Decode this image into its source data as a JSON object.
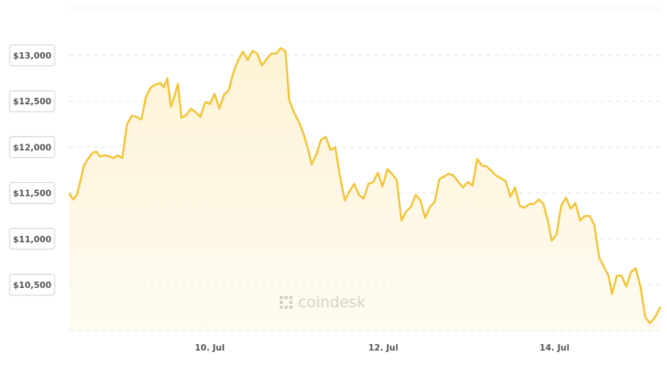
{
  "chart_data": {
    "type": "area",
    "title": "",
    "xlabel": "",
    "ylabel": "",
    "grid": true,
    "x_ticks": [
      "10. Jul",
      "12. Jul",
      "14. Jul"
    ],
    "y_ticks": [
      "$10,500",
      "$11,000",
      "$11,500",
      "$12,000",
      "$12,500",
      "$13,000"
    ],
    "y_tick_values": [
      10500,
      11000,
      11500,
      12000,
      12500,
      13000
    ],
    "ylim": [
      10000,
      13500
    ],
    "xlim": [
      0,
      100
    ],
    "series": [
      {
        "color": "#f2c438",
        "fill": "#fdf3d6",
        "points": [
          [
            0,
            11500
          ],
          [
            0.7,
            11430
          ],
          [
            1.3,
            11480
          ],
          [
            1.8,
            11600
          ],
          [
            2.5,
            11800
          ],
          [
            3.3,
            11880
          ],
          [
            4,
            11940
          ],
          [
            4.6,
            11950
          ],
          [
            5.2,
            11900
          ],
          [
            6,
            11910
          ],
          [
            6.8,
            11900
          ],
          [
            7.5,
            11880
          ],
          [
            8.2,
            11910
          ],
          [
            9,
            11880
          ],
          [
            9.8,
            12250
          ],
          [
            10.6,
            12340
          ],
          [
            11.4,
            12330
          ],
          [
            12.2,
            12300
          ],
          [
            13,
            12550
          ],
          [
            13.8,
            12650
          ],
          [
            14.6,
            12680
          ],
          [
            15.4,
            12700
          ],
          [
            16,
            12650
          ],
          [
            16.6,
            12750
          ],
          [
            17.2,
            12440
          ],
          [
            17.8,
            12550
          ],
          [
            18.4,
            12690
          ],
          [
            19,
            12320
          ],
          [
            19.8,
            12350
          ],
          [
            20.6,
            12420
          ],
          [
            21.4,
            12380
          ],
          [
            22.2,
            12330
          ],
          [
            23,
            12490
          ],
          [
            23.8,
            12470
          ],
          [
            24.6,
            12580
          ],
          [
            25.4,
            12420
          ],
          [
            26.2,
            12570
          ],
          [
            27,
            12620
          ],
          [
            27.8,
            12820
          ],
          [
            28.6,
            12950
          ],
          [
            29.4,
            13040
          ],
          [
            30.2,
            12950
          ],
          [
            31,
            13050
          ],
          [
            31.8,
            13020
          ],
          [
            32.6,
            12890
          ],
          [
            33.4,
            12960
          ],
          [
            34.2,
            13020
          ],
          [
            35,
            13020
          ],
          [
            35.8,
            13080
          ],
          [
            36.6,
            13040
          ],
          [
            37.2,
            12520
          ],
          [
            38,
            12380
          ],
          [
            38.8,
            12280
          ],
          [
            39.6,
            12150
          ],
          [
            40.4,
            11980
          ],
          [
            41,
            11810
          ],
          [
            41.8,
            11920
          ],
          [
            42.6,
            12080
          ],
          [
            43.4,
            12110
          ],
          [
            44.2,
            11970
          ],
          [
            45,
            12000
          ],
          [
            45.8,
            11680
          ],
          [
            46.6,
            11420
          ],
          [
            47.4,
            11520
          ],
          [
            48.2,
            11600
          ],
          [
            49,
            11480
          ],
          [
            49.8,
            11440
          ],
          [
            50.6,
            11600
          ],
          [
            51.4,
            11620
          ],
          [
            52.2,
            11720
          ],
          [
            53,
            11570
          ],
          [
            53.8,
            11760
          ],
          [
            54.6,
            11710
          ],
          [
            55.4,
            11640
          ],
          [
            56.2,
            11200
          ],
          [
            57,
            11300
          ],
          [
            57.8,
            11350
          ],
          [
            58.6,
            11480
          ],
          [
            59.4,
            11420
          ],
          [
            60.2,
            11230
          ],
          [
            61,
            11350
          ],
          [
            61.8,
            11400
          ],
          [
            62.6,
            11650
          ],
          [
            63.4,
            11680
          ],
          [
            64.2,
            11710
          ],
          [
            65,
            11690
          ],
          [
            65.8,
            11620
          ],
          [
            66.6,
            11560
          ],
          [
            67.4,
            11620
          ],
          [
            68.2,
            11580
          ],
          [
            69,
            11870
          ],
          [
            69.8,
            11800
          ],
          [
            70.6,
            11790
          ],
          [
            71.4,
            11740
          ],
          [
            72.2,
            11690
          ],
          [
            73,
            11660
          ],
          [
            73.8,
            11630
          ],
          [
            74.6,
            11460
          ],
          [
            75.4,
            11560
          ],
          [
            76.2,
            11360
          ],
          [
            77,
            11340
          ],
          [
            77.8,
            11380
          ],
          [
            78.6,
            11380
          ],
          [
            79.4,
            11430
          ],
          [
            80.2,
            11380
          ],
          [
            81,
            11180
          ],
          [
            81.6,
            10980
          ],
          [
            82.4,
            11050
          ],
          [
            83.2,
            11360
          ],
          [
            84,
            11450
          ],
          [
            84.8,
            11330
          ],
          [
            85.6,
            11390
          ],
          [
            86.4,
            11200
          ],
          [
            87.2,
            11250
          ],
          [
            88,
            11250
          ],
          [
            88.8,
            11150
          ],
          [
            89.6,
            10800
          ],
          [
            90.4,
            10700
          ],
          [
            91.2,
            10600
          ],
          [
            91.8,
            10400
          ],
          [
            92.6,
            10600
          ],
          [
            93.4,
            10600
          ],
          [
            94.2,
            10480
          ],
          [
            95,
            10640
          ],
          [
            95.8,
            10680
          ],
          [
            96.6,
            10480
          ],
          [
            97.4,
            10150
          ],
          [
            98.2,
            10080
          ],
          [
            99,
            10140
          ],
          [
            100,
            10260
          ]
        ]
      }
    ],
    "watermark": "coindesk"
  }
}
